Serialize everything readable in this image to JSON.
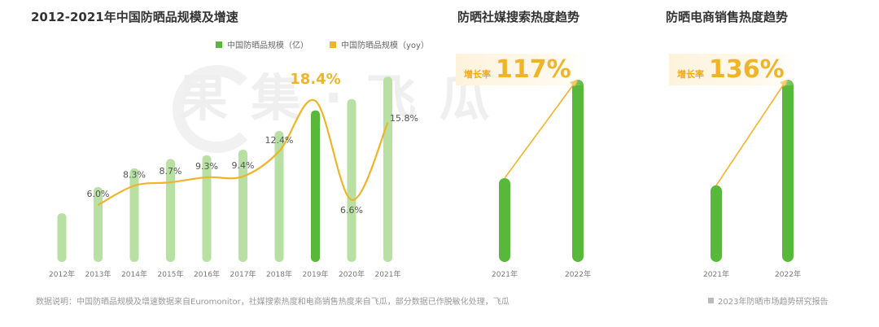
{
  "titles": {
    "main": "2012-2021年中国防晒品规模及增速",
    "social": "防晒社媒搜索热度趋势",
    "ecommerce": "防晒电商销售热度趋势"
  },
  "legend": {
    "bar_label": "中国防晒品规模（亿）",
    "line_label": "中国防晒品规模（yoy）"
  },
  "note": "数据说明：中国防晒品规模及增速数据来自Euromonitor，社媒搜索热度和电商销售热度来自飞瓜，部分数据已作脱敏化处理，飞瓜",
  "source": "2023年防晒市场趋势研究报告",
  "colors": {
    "bar_light": "#b7e0a2",
    "bar_highlight": "#57b83a",
    "line": "#f0b428",
    "growth_text": "#f0b428"
  },
  "chart_data": [
    {
      "type": "bar",
      "title": "2012-2021年中国防晒品规模及增速",
      "categories": [
        "2012年",
        "2013年",
        "2014年",
        "2015年",
        "2016年",
        "2017年",
        "2018年",
        "2019年",
        "2020年",
        "2021年"
      ],
      "series": [
        {
          "name": "中国防晒品规模（亿）",
          "type": "bar",
          "values": [
            26,
            40,
            50,
            55,
            57,
            60,
            70,
            81,
            87,
            99
          ],
          "highlight_index": 7
        },
        {
          "name": "中国防晒品规模（yoy）",
          "type": "line",
          "values": [
            null,
            6.0,
            8.3,
            8.7,
            9.3,
            9.4,
            12.4,
            18.4,
            6.6,
            15.8
          ],
          "labels": [
            "",
            "6.0%",
            "8.3%",
            "8.7%",
            "9.3%",
            "9.4%",
            "12.4%",
            "18.4%",
            "6.6%",
            "15.8%"
          ]
        }
      ],
      "ylim": [
        0,
        100
      ],
      "grid": false
    },
    {
      "type": "bar",
      "title": "防晒社媒搜索热度趋势",
      "categories": [
        "2021年",
        "2022年"
      ],
      "values": [
        46,
        100
      ],
      "growth_label": "增长率",
      "growth_value": "117%"
    },
    {
      "type": "bar",
      "title": "防晒电商销售热度趋势",
      "categories": [
        "2021年",
        "2022年"
      ],
      "values": [
        42,
        100
      ],
      "growth_label": "增长率",
      "growth_value": "136%"
    }
  ]
}
